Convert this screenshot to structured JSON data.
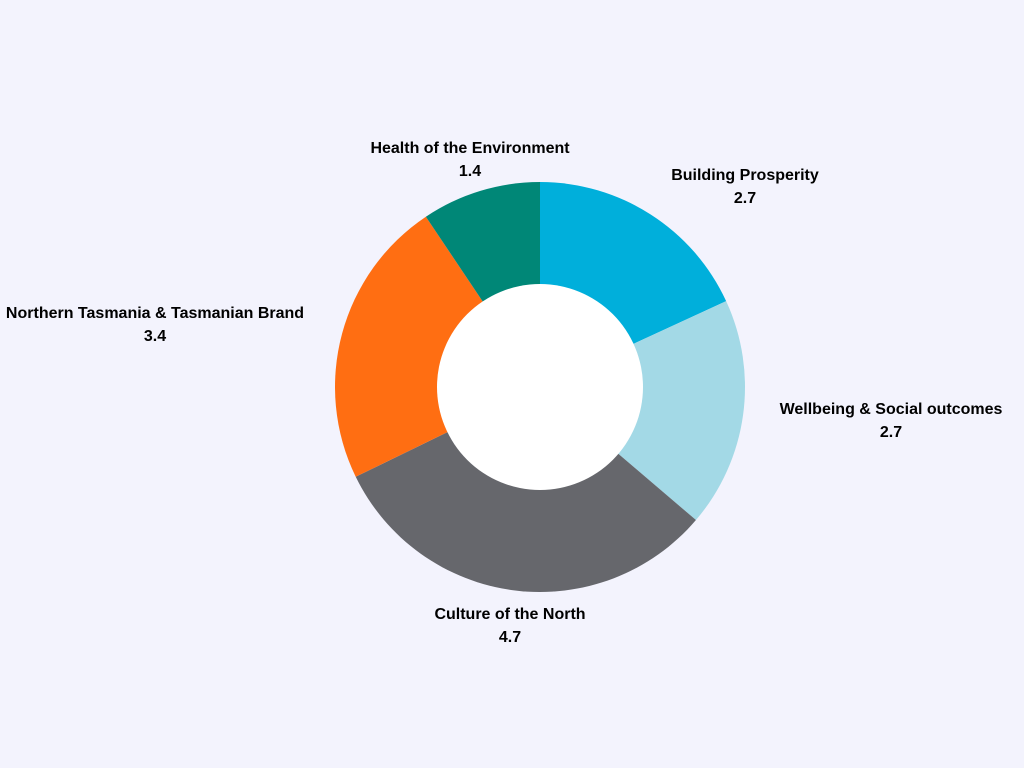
{
  "chart_data": {
    "type": "pie",
    "variant": "donut",
    "start_angle_deg": 0,
    "direction": "clockwise",
    "legend": "none",
    "slices": [
      {
        "label": "Building Prosperity",
        "value": 2.7,
        "value_label": "2.7",
        "color": "#00afdb"
      },
      {
        "label": "Wellbeing & Social outcomes",
        "value": 2.7,
        "value_label": "2.7",
        "color": "#a3d9e6"
      },
      {
        "label": "Culture of the North",
        "value": 4.7,
        "value_label": "4.7",
        "color": "#66676c"
      },
      {
        "label": "Northern Tasmania & Tasmanian Brand",
        "value": 3.4,
        "value_label": "3.4",
        "color": "#ff6e12"
      },
      {
        "label": "Health of the Environment",
        "value": 1.4,
        "value_label": "1.4",
        "color": "#008777"
      }
    ]
  },
  "background_color": "#f3f3fd",
  "hole_color": "#ffffff"
}
